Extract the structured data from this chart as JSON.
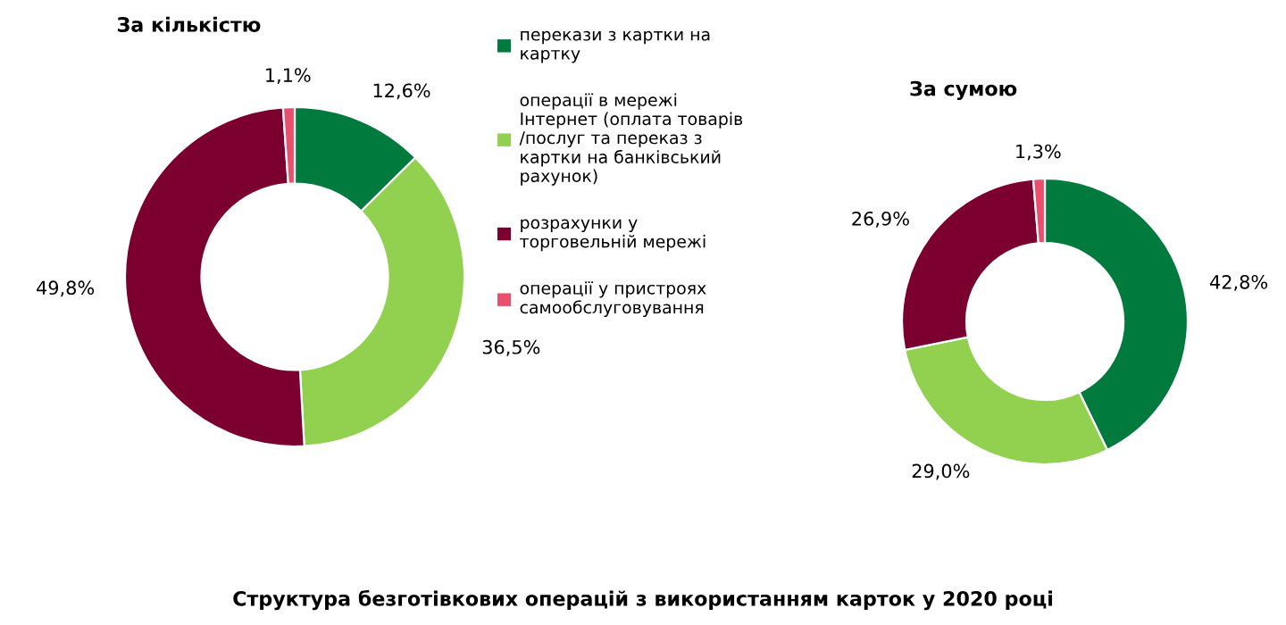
{
  "chart_data": [
    {
      "type": "donut",
      "title": "За кількістю",
      "categories": [
        "перекази з картки на картку",
        "операції в мережі Інтернет (оплата товарів /послуг та переказ з картки на банківський рахунок)",
        "розрахунки у торговельній мережі",
        "операції у пристроях самообслуговування"
      ],
      "values": [
        12.6,
        36.5,
        49.8,
        1.1
      ],
      "value_labels": [
        "12,6%",
        "36,5%",
        "49,8%",
        "1,1%"
      ],
      "colors": [
        "#007a3d",
        "#92d050",
        "#7b0030",
        "#e8506e"
      ],
      "legend": "right",
      "annotations": [
        "Структура безготівкових операцій з використанням карток у 2020 році"
      ]
    },
    {
      "type": "donut",
      "title": "За сумою",
      "values": [
        42.8,
        29.0,
        26.9,
        1.3
      ],
      "value_labels": [
        "42,8%",
        "29,0%",
        "26,9%",
        "1,3%"
      ],
      "colors": [
        "#007a3d",
        "#92d050",
        "#7b0030",
        "#e8506e"
      ]
    }
  ]
}
